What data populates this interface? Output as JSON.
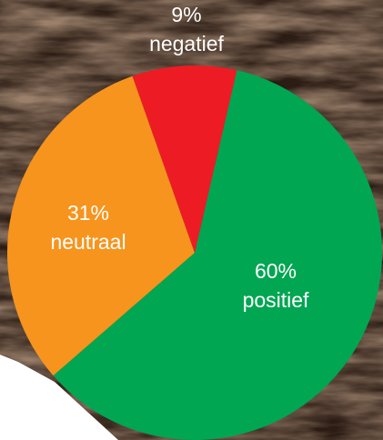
{
  "chart_data": {
    "type": "pie",
    "categories": [
      "positief",
      "neutraal",
      "negatief"
    ],
    "values": [
      60,
      31,
      9
    ],
    "value_labels": [
      "60%",
      "31%",
      "9%"
    ],
    "colors": [
      "#00a651",
      "#f7941d",
      "#ed1c24"
    ]
  }
}
